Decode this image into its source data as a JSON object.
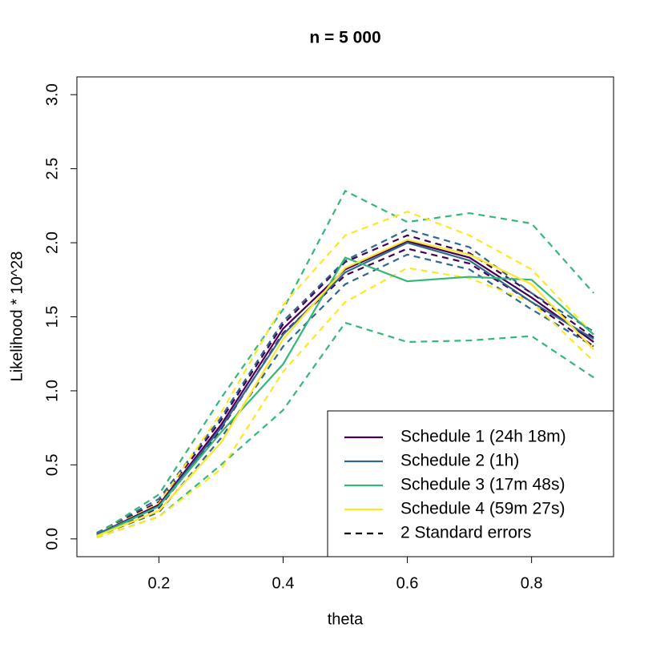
{
  "chart_data": {
    "type": "line",
    "title": "n = 5 000",
    "x_label": "theta",
    "y_label": "Likelihood * 10^28",
    "x": [
      0.1,
      0.2,
      0.3,
      0.4,
      0.5,
      0.6,
      0.7,
      0.8,
      0.9
    ],
    "series": [
      {
        "name": "Schedule 1 (24h 18m)",
        "color": "#440154",
        "values": [
          0.03,
          0.23,
          0.77,
          1.42,
          1.82,
          2.01,
          1.9,
          1.63,
          1.33
        ],
        "upper": [
          0.04,
          0.25,
          0.8,
          1.45,
          1.87,
          2.05,
          1.93,
          1.66,
          1.36
        ],
        "lower": [
          0.02,
          0.21,
          0.74,
          1.39,
          1.78,
          1.96,
          1.86,
          1.6,
          1.3
        ]
      },
      {
        "name": "Schedule 2 (1h)",
        "color": "#31688E",
        "values": [
          0.03,
          0.22,
          0.75,
          1.38,
          1.8,
          2.0,
          1.88,
          1.6,
          1.35
        ],
        "upper": [
          0.04,
          0.27,
          0.82,
          1.47,
          1.88,
          2.09,
          1.97,
          1.66,
          1.4
        ],
        "lower": [
          0.02,
          0.18,
          0.68,
          1.3,
          1.72,
          1.92,
          1.82,
          1.55,
          1.3
        ]
      },
      {
        "name": "Schedule 3 (17m 48s)",
        "color": "#35B779",
        "values": [
          0.02,
          0.22,
          0.72,
          1.18,
          1.9,
          1.74,
          1.77,
          1.75,
          1.38
        ],
        "upper": [
          0.03,
          0.3,
          0.95,
          1.55,
          2.35,
          2.14,
          2.2,
          2.13,
          1.66
        ],
        "lower": [
          0.01,
          0.15,
          0.5,
          0.87,
          1.46,
          1.33,
          1.34,
          1.37,
          1.09
        ]
      },
      {
        "name": "Schedule 4 (59m 27s)",
        "color": "#FDE725",
        "values": [
          0.02,
          0.19,
          0.65,
          1.35,
          1.83,
          2.02,
          1.92,
          1.72,
          1.28
        ],
        "upper": [
          0.03,
          0.24,
          0.85,
          1.58,
          2.05,
          2.21,
          2.05,
          1.82,
          1.38
        ],
        "lower": [
          0.01,
          0.15,
          0.47,
          1.13,
          1.6,
          1.83,
          1.76,
          1.6,
          1.2
        ]
      }
    ],
    "band_label": "2 Standard errors",
    "band_color": "#000000",
    "xlim": [
      0.068,
      0.932
    ],
    "xticks": [
      0.2,
      0.4,
      0.6,
      0.8
    ],
    "ylim": [
      -0.12,
      3.12
    ],
    "yticks": [
      {
        "value": 0,
        "label": "0.0"
      },
      0.5,
      {
        "value": 1,
        "label": "1.0"
      },
      1.5,
      {
        "value": 2,
        "label": "2.0"
      },
      2.5,
      {
        "value": 3,
        "label": "3.0"
      }
    ],
    "legend": "bottomright",
    "grid": false
  }
}
